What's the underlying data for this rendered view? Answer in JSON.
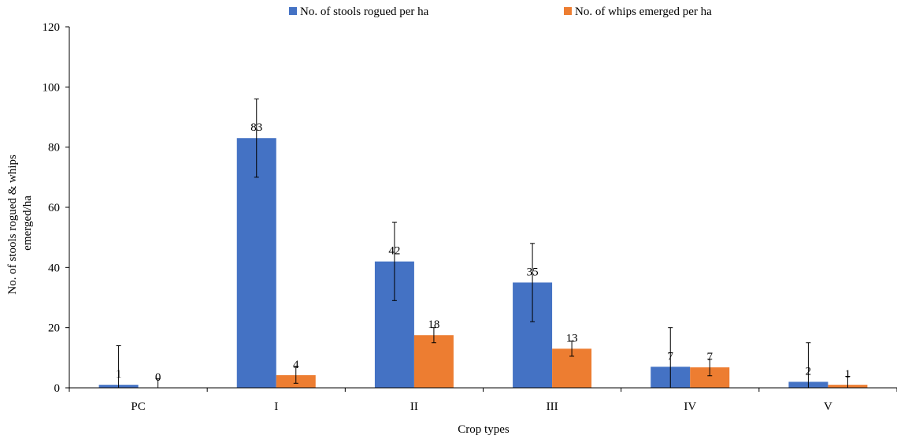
{
  "chart_data": {
    "type": "bar",
    "title": "",
    "xlabel": "Crop types",
    "ylabel_line1": "No. of stools rogued & whips",
    "ylabel_line2": "emerged/ha",
    "categories": [
      "PC",
      "I",
      "II",
      "III",
      "IV",
      "V"
    ],
    "ylim": [
      0,
      120
    ],
    "yticks": [
      0,
      20,
      40,
      60,
      80,
      100,
      120
    ],
    "grid": false,
    "legend_position": "top",
    "series": [
      {
        "name": "No. of stools rogued per ha",
        "color": "#4472C4",
        "values": [
          1,
          83,
          42,
          35,
          7,
          2
        ],
        "labels": [
          "1",
          "83",
          "42",
          "35",
          "7",
          "2"
        ],
        "err_upper": [
          14,
          96,
          55,
          48,
          20,
          15
        ],
        "err_lower": [
          0,
          70,
          29,
          22,
          0,
          0
        ]
      },
      {
        "name": "No. of whips emerged per ha",
        "color": "#ED7D31",
        "values": [
          0,
          4.2,
          17.5,
          13,
          6.8,
          1
        ],
        "labels": [
          "0",
          "4",
          "18",
          "13",
          "7",
          "1"
        ],
        "err_upper": [
          3,
          6.8,
          20,
          15.5,
          9.5,
          3.8
        ],
        "err_lower": [
          0,
          1.5,
          15,
          10.5,
          4,
          0
        ]
      }
    ]
  }
}
